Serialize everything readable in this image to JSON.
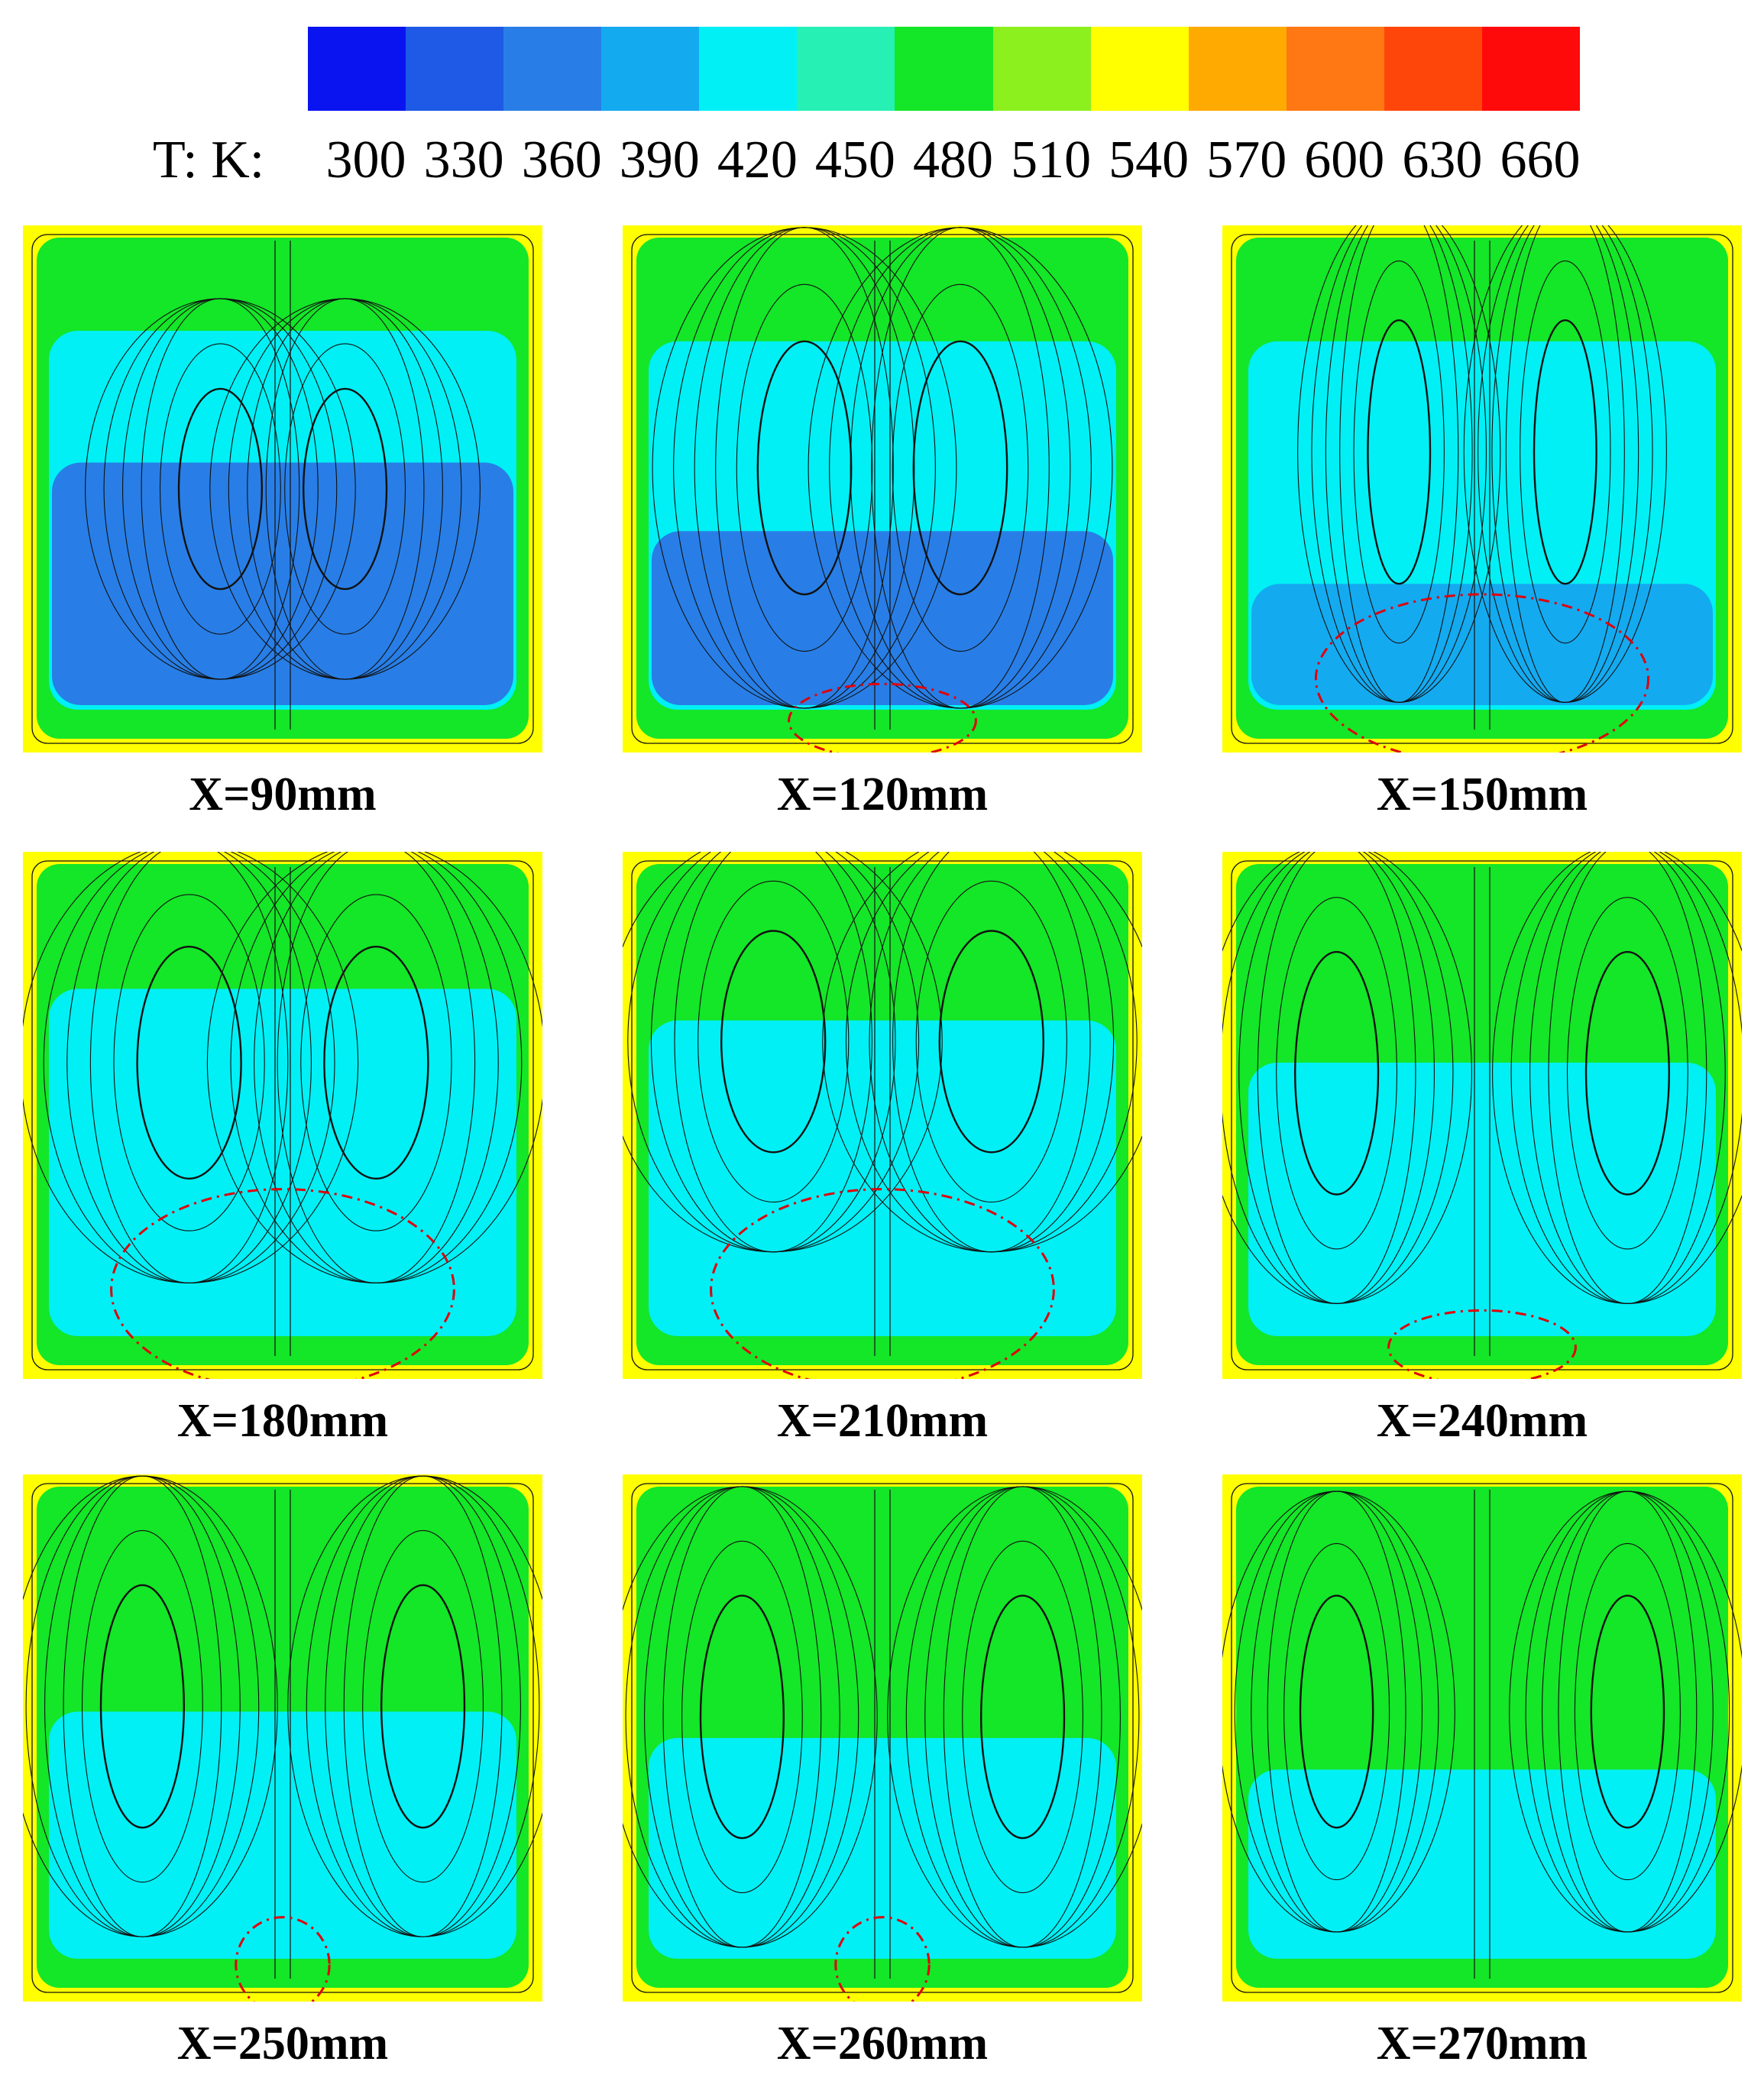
{
  "legend": {
    "title": "T: K:",
    "colors": [
      "#0a14f0",
      "#1e5ae6",
      "#287ee6",
      "#14aaf0",
      "#00f0f5",
      "#26f0b4",
      "#14e628",
      "#8cf01e",
      "#ffff00",
      "#ffaa00",
      "#ff7814",
      "#ff460a",
      "#ff0a0a"
    ],
    "ticks": [
      "300",
      "330",
      "360",
      "390",
      "420",
      "450",
      "480",
      "510",
      "540",
      "570",
      "600",
      "630",
      "660"
    ]
  },
  "panels": [
    {
      "label": "X=90mm",
      "highlight": "none"
    },
    {
      "label": "X=120mm",
      "highlight": "small"
    },
    {
      "label": "X=150mm",
      "highlight": "pair"
    },
    {
      "label": "X=180mm",
      "highlight": "pair-large"
    },
    {
      "label": "X=210mm",
      "highlight": "pair-large"
    },
    {
      "label": "X=240mm",
      "highlight": "small"
    },
    {
      "label": "X=250mm",
      "highlight": "tiny"
    },
    {
      "label": "X=260mm",
      "highlight": "tiny"
    },
    {
      "label": "X=270mm",
      "highlight": "none"
    }
  ]
}
